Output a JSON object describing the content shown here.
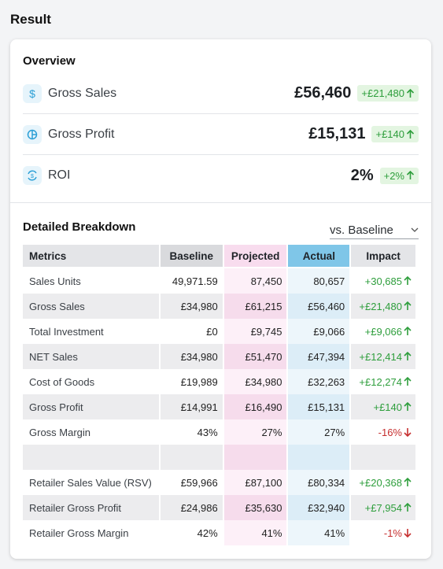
{
  "page": {
    "title": "Result"
  },
  "overview": {
    "title": "Overview",
    "rows": [
      {
        "label": "Gross Sales",
        "value": "£56,460",
        "badge": "+£21,480",
        "icon": "dollar-icon"
      },
      {
        "label": "Gross Profit",
        "value": "£15,131",
        "badge": "+£140",
        "icon": "pie-chart-icon"
      },
      {
        "label": "ROI",
        "value": "2%",
        "badge": "+2%",
        "icon": "cycle-dollar-icon"
      }
    ]
  },
  "breakdown": {
    "title": "Detailed Breakdown",
    "select": {
      "value": "vs. Baseline"
    },
    "headers": {
      "metrics": "Metrics",
      "baseline": "Baseline",
      "projected": "Projected",
      "actual": "Actual",
      "impact": "Impact"
    },
    "rows": [
      {
        "metric": "Sales Units",
        "baseline": "49,971.59",
        "projected": "87,450",
        "actual": "80,657",
        "impact": "+30,685",
        "dir": "up"
      },
      {
        "metric": "Gross Sales",
        "baseline": "£34,980",
        "projected": "£61,215",
        "actual": "£56,460",
        "impact": "+£21,480",
        "dir": "up"
      },
      {
        "metric": "Total Investment",
        "baseline": "£0",
        "projected": "£9,745",
        "actual": "£9,066",
        "impact": "+£9,066",
        "dir": "up"
      },
      {
        "metric": "NET Sales",
        "baseline": "£34,980",
        "projected": "£51,470",
        "actual": "£47,394",
        "impact": "+£12,414",
        "dir": "up"
      },
      {
        "metric": "Cost of Goods",
        "baseline": "£19,989",
        "projected": "£34,980",
        "actual": "£32,263",
        "impact": "+£12,274",
        "dir": "up"
      },
      {
        "metric": "Gross Profit",
        "baseline": "£14,991",
        "projected": "£16,490",
        "actual": "£15,131",
        "impact": "+£140",
        "dir": "up"
      },
      {
        "metric": "Gross Margin",
        "baseline": "43%",
        "projected": "27%",
        "actual": "27%",
        "impact": "-16%",
        "dir": "down"
      },
      {
        "metric": "",
        "baseline": "",
        "projected": "",
        "actual": "",
        "impact": "",
        "dir": ""
      },
      {
        "metric": "Retailer Sales Value (RSV)",
        "baseline": "£59,966",
        "projected": "£87,100",
        "actual": "£80,334",
        "impact": "+£20,368",
        "dir": "up"
      },
      {
        "metric": "Retailer Gross Profit",
        "baseline": "£24,986",
        "projected": "£35,630",
        "actual": "£32,940",
        "impact": "+£7,954",
        "dir": "up"
      },
      {
        "metric": "Retailer Gross Margin",
        "baseline": "42%",
        "projected": "41%",
        "actual": "41%",
        "impact": "-1%",
        "dir": "down"
      }
    ]
  },
  "colors": {
    "positive": "#2e9e3c",
    "negative": "#c62f2f",
    "accent": "#7fc6e8"
  }
}
